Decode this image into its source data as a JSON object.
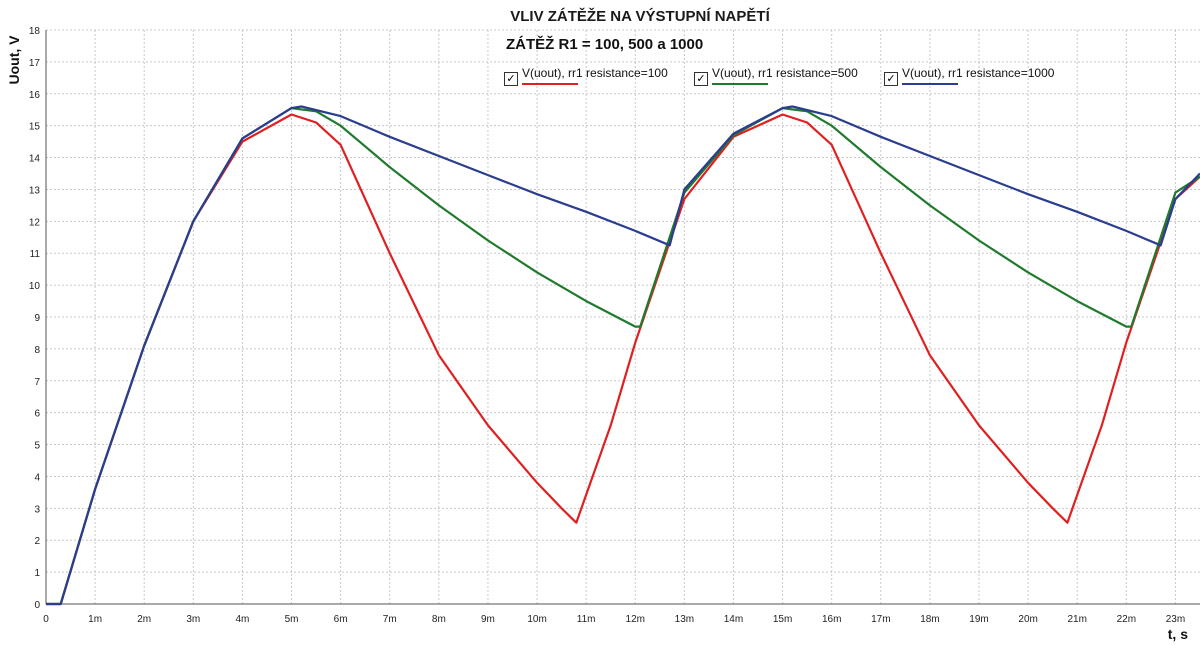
{
  "chart_data": {
    "type": "line",
    "title": "VLIV ZÁTĚŽE NA VÝSTUPNÍ NAPĚTÍ",
    "subtitle": "ZÁTĚŽ R1 = 100, 500 a 1000",
    "xlabel": "t, s",
    "ylabel": "Uout, V",
    "xlim": [
      0,
      23.5
    ],
    "ylim": [
      0,
      18
    ],
    "x_ticks": [
      "0",
      "1m",
      "2m",
      "3m",
      "4m",
      "5m",
      "6m",
      "7m",
      "8m",
      "9m",
      "10m",
      "11m",
      "12m",
      "13m",
      "14m",
      "15m",
      "16m",
      "17m",
      "18m",
      "19m",
      "20m",
      "21m",
      "22m",
      "23m"
    ],
    "y_ticks": [
      "0",
      "1",
      "2",
      "3",
      "4",
      "5",
      "6",
      "7",
      "8",
      "9",
      "10",
      "11",
      "12",
      "13",
      "14",
      "15",
      "16",
      "17",
      "18"
    ],
    "grid": true,
    "legend_position": "top",
    "series": [
      {
        "name": "V(uout), rr1 resistance=100",
        "color": "#e02020",
        "x": [
          0,
          0.3,
          1,
          2,
          3,
          4,
          5,
          5.5,
          6,
          7,
          8,
          9,
          10,
          10.5,
          10.8,
          11.5,
          12,
          13,
          14,
          15,
          15.5,
          16,
          17,
          18,
          19,
          20,
          20.5,
          20.8,
          21.5,
          22,
          23,
          23.5
        ],
        "y": [
          0,
          0,
          3.6,
          8.1,
          12.0,
          14.5,
          15.35,
          15.1,
          14.4,
          11.0,
          7.8,
          5.6,
          3.8,
          3.0,
          2.55,
          5.6,
          8.2,
          12.7,
          14.65,
          15.35,
          15.1,
          14.4,
          11.0,
          7.8,
          5.6,
          3.8,
          3.0,
          2.55,
          5.6,
          8.2,
          12.7,
          13.4
        ]
      },
      {
        "name": "V(uout), rr1 resistance=500",
        "color": "#1f7a2e",
        "x": [
          0,
          0.3,
          1,
          2,
          3,
          4,
          5,
          5.5,
          6,
          7,
          8,
          9,
          10,
          11,
          12,
          12.1,
          13,
          14,
          15,
          15.5,
          16,
          17,
          18,
          19,
          20,
          21,
          22,
          22.1,
          23,
          23.5
        ],
        "y": [
          0,
          0,
          3.6,
          8.1,
          12.0,
          14.6,
          15.55,
          15.45,
          15.0,
          13.7,
          12.5,
          11.4,
          10.4,
          9.5,
          8.7,
          8.7,
          12.9,
          14.7,
          15.55,
          15.45,
          15.0,
          13.7,
          12.5,
          11.4,
          10.4,
          9.5,
          8.7,
          8.7,
          12.9,
          13.4
        ]
      },
      {
        "name": "V(uout), rr1 resistance=1000",
        "color": "#2a3d8f",
        "x": [
          0,
          0.3,
          1,
          2,
          3,
          4,
          5,
          5.2,
          6,
          7,
          8,
          9,
          10,
          11,
          12,
          12.7,
          13,
          14,
          15,
          15.2,
          16,
          17,
          18,
          19,
          20,
          21,
          22,
          22.7,
          23,
          23.5
        ],
        "y": [
          0,
          0,
          3.6,
          8.1,
          12.0,
          14.6,
          15.55,
          15.6,
          15.3,
          14.65,
          14.05,
          13.45,
          12.85,
          12.3,
          11.7,
          11.25,
          13.0,
          14.75,
          15.55,
          15.6,
          15.3,
          14.65,
          14.05,
          13.45,
          12.85,
          12.3,
          11.7,
          11.25,
          12.7,
          13.5
        ]
      }
    ]
  }
}
